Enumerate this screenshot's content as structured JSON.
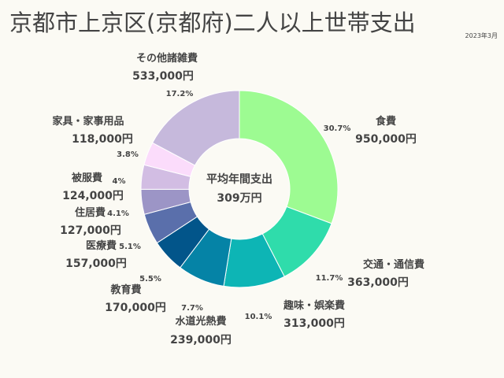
{
  "title": "京都市上京区(京都府)二人以上世帯支出",
  "date": "2023年3月",
  "center": {
    "line1": "平均年間支出",
    "line2": "309万円"
  },
  "chart_data": {
    "type": "pie",
    "title": "京都市上京区(京都府)二人以上世帯支出",
    "total_label": "309万円",
    "slices": [
      {
        "name": "食費",
        "amount": "950,000円",
        "value": 950000,
        "pct": "30.7%",
        "color": "#9dfb92"
      },
      {
        "name": "交通・通信費",
        "amount": "363,000円",
        "value": 363000,
        "pct": "11.7%",
        "color": "#2fdcab"
      },
      {
        "name": "趣味・娯楽費",
        "amount": "313,000円",
        "value": 313000,
        "pct": "10.1%",
        "color": "#0db5b5"
      },
      {
        "name": "水道光熱費",
        "amount": "239,000円",
        "value": 239000,
        "pct": "7.7%",
        "color": "#0583a6"
      },
      {
        "name": "教育費",
        "amount": "170,000円",
        "value": 170000,
        "pct": "5.5%",
        "color": "#02558a"
      },
      {
        "name": "医療費",
        "amount": "157,000円",
        "value": 157000,
        "pct": "5.1%",
        "color": "#5a6fab"
      },
      {
        "name": "住居費",
        "amount": "127,000円",
        "value": 127000,
        "pct": "4.1%",
        "color": "#9c95c6"
      },
      {
        "name": "被服費",
        "amount": "124,000円",
        "value": 124000,
        "pct": "4%",
        "color": "#d2bde3"
      },
      {
        "name": "家具・家事用品",
        "amount": "118,000円",
        "value": 118000,
        "pct": "3.8%",
        "color": "#fbdcfb"
      },
      {
        "name": "その他諸雑費",
        "amount": "533,000円",
        "value": 533000,
        "pct": "17.2%",
        "color": "#c6b9dc"
      }
    ]
  }
}
